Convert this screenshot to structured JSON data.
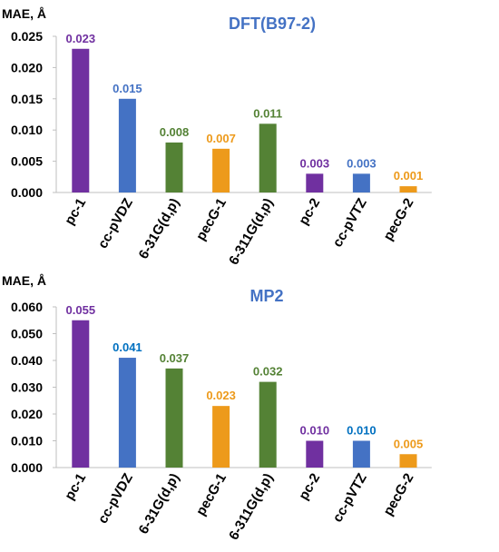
{
  "chart_data": [
    {
      "type": "bar",
      "title": "DFT(B97-2)",
      "ylabel": "MAE, Å",
      "xlabel": "",
      "ylim": [
        0,
        0.025
      ],
      "yticks": [
        "0.000",
        "0.005",
        "0.010",
        "0.015",
        "0.020",
        "0.025"
      ],
      "categories": [
        "pc-1",
        "cc-pVDZ",
        "6-31G(d,p)",
        "pecG-1",
        "6-311G(d,p)",
        "pc-2",
        "cc-pVTZ",
        "pecG-2"
      ],
      "values": [
        0.023,
        0.015,
        0.008,
        0.007,
        0.011,
        0.003,
        0.003,
        0.001
      ],
      "value_labels": [
        "0.023",
        "0.015",
        "0.008",
        "0.007",
        "0.011",
        "0.003",
        "0.003",
        "0.001"
      ],
      "colors": [
        "#7030a0",
        "#4472c4",
        "#548235",
        "#ed9a1b",
        "#548235",
        "#7030a0",
        "#4472c4",
        "#ed9a1b"
      ],
      "label_colors": [
        "#7030a0",
        "#4472c4",
        "#548235",
        "#ed9a1b",
        "#548235",
        "#7030a0",
        "#4472c4",
        "#ed9a1b"
      ],
      "title_color": "#4472c4",
      "grid": false
    },
    {
      "type": "bar",
      "title": "MP2",
      "ylabel": "MAE, Å",
      "xlabel": "",
      "ylim": [
        0,
        0.06
      ],
      "yticks": [
        "0.000",
        "0.010",
        "0.020",
        "0.030",
        "0.040",
        "0.050",
        "0.060"
      ],
      "categories": [
        "pc-1",
        "cc-pVDZ",
        "6-31G(d,p)",
        "pecG-1",
        "6-311G(d,p)",
        "pc-2",
        "cc-pVTZ",
        "pecG-2"
      ],
      "values": [
        0.055,
        0.041,
        0.037,
        0.023,
        0.032,
        0.01,
        0.01,
        0.005
      ],
      "value_labels": [
        "0.055",
        "0.041",
        "0.037",
        "0.023",
        "0.032",
        "0.010",
        "0.010",
        "0.005"
      ],
      "colors": [
        "#7030a0",
        "#4472c4",
        "#548235",
        "#ed9a1b",
        "#548235",
        "#7030a0",
        "#4472c4",
        "#ed9a1b"
      ],
      "label_colors": [
        "#7030a0",
        "#0070c0",
        "#548235",
        "#ed9a1b",
        "#548235",
        "#7030a0",
        "#0070c0",
        "#ed9a1b"
      ],
      "title_color": "#4472c4",
      "grid": false
    }
  ]
}
